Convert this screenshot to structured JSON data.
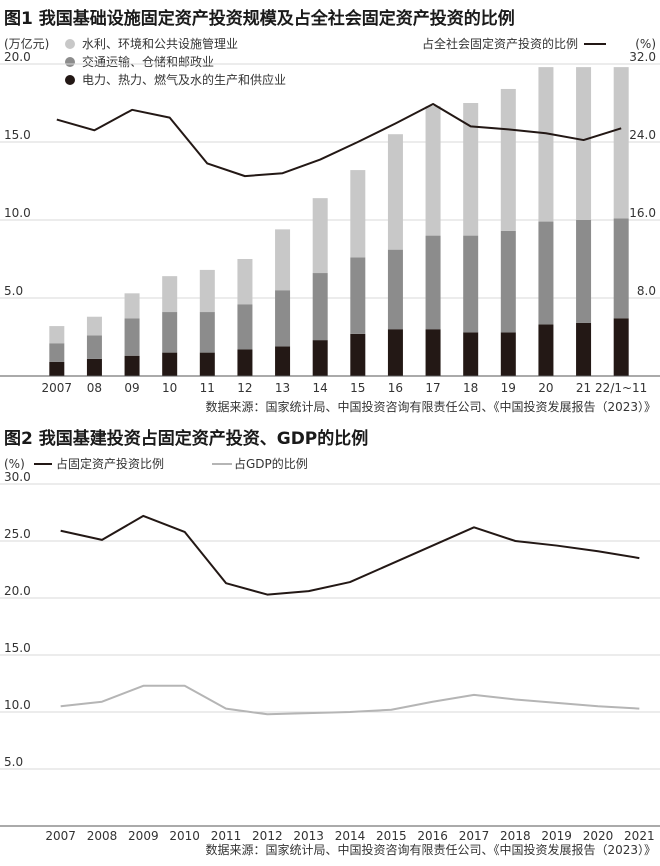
{
  "chart_data": [
    {
      "type": "bar",
      "title": "图1 我国基础设施固定资产投资规模及占全社会固定资产投资的比例",
      "y_unit_label": "(万亿元)",
      "y2_unit_label": "(%)",
      "categories": [
        "2007",
        "08",
        "09",
        "10",
        "11",
        "12",
        "13",
        "14",
        "15",
        "16",
        "17",
        "18",
        "19",
        "20",
        "21",
        "22/1~11"
      ],
      "stacked": true,
      "ylim": [
        0,
        20
      ],
      "yticks": [
        "20.0",
        "15.0",
        "10.0",
        "5.0"
      ],
      "y2lim": [
        0,
        32
      ],
      "y2ticks": [
        "32.0",
        "24.0",
        "16.0",
        "8.0"
      ],
      "series": [
        {
          "name": "电力、热力、燃气及水的生产和供应业",
          "color": "#231815",
          "values": [
            0.9,
            1.1,
            1.3,
            1.5,
            1.5,
            1.7,
            1.9,
            2.3,
            2.7,
            3.0,
            3.0,
            2.8,
            2.8,
            3.3,
            3.4,
            3.7
          ]
        },
        {
          "name": "交通运输、仓储和邮政业",
          "color": "#8c8c8c",
          "values": [
            1.2,
            1.5,
            2.4,
            2.6,
            2.6,
            2.9,
            3.6,
            4.3,
            4.9,
            5.1,
            6.0,
            6.2,
            6.5,
            6.6,
            6.6,
            6.4
          ]
        },
        {
          "name": "水利、环境和公共设施管理业",
          "color": "#c8c8c8",
          "values": [
            1.1,
            1.2,
            1.6,
            2.3,
            2.7,
            2.9,
            3.9,
            4.8,
            5.6,
            7.4,
            8.3,
            8.5,
            9.1,
            9.9,
            9.8,
            9.7
          ]
        }
      ],
      "line": {
        "name": "占全社会固定资产投资的比例",
        "axis": "right",
        "color": "#231815",
        "values": [
          26.3,
          25.2,
          27.3,
          26.5,
          21.8,
          20.5,
          20.8,
          22.2,
          24.0,
          25.9,
          27.9,
          25.6,
          25.3,
          24.9,
          24.2,
          25.4
        ]
      },
      "source": "数据来源：国家统计局、中国投资咨询有限责任公司、《中国投资发展报告（2023）》"
    },
    {
      "type": "line",
      "title": "图2 我国基建投资占固定资产投资、GDP的比例",
      "y_unit_label": "(%)",
      "categories": [
        "2007",
        "2008",
        "2009",
        "2010",
        "2011",
        "2012",
        "2013",
        "2014",
        "2015",
        "2016",
        "2017",
        "2018",
        "2019",
        "2020",
        "2021"
      ],
      "ylim": [
        0,
        30
      ],
      "yticks": [
        "30.0",
        "25.0",
        "20.0",
        "15.0",
        "10.0",
        "5.0"
      ],
      "series": [
        {
          "name": "占固定资产投资比例",
          "color": "#231815",
          "values": [
            25.9,
            25.1,
            27.2,
            25.8,
            21.3,
            20.3,
            20.6,
            21.4,
            23.0,
            24.6,
            26.2,
            25.0,
            24.6,
            24.1,
            23.5
          ]
        },
        {
          "name": "占GDP的比例",
          "color": "#b5b5b5",
          "values": [
            10.5,
            10.9,
            12.3,
            12.3,
            10.3,
            9.8,
            9.9,
            10.0,
            10.2,
            10.9,
            11.5,
            11.1,
            10.8,
            10.5,
            10.3
          ]
        }
      ],
      "source": "数据来源：国家统计局、中国投资咨询有限责任公司、《中国投资发展报告（2023）》"
    }
  ]
}
